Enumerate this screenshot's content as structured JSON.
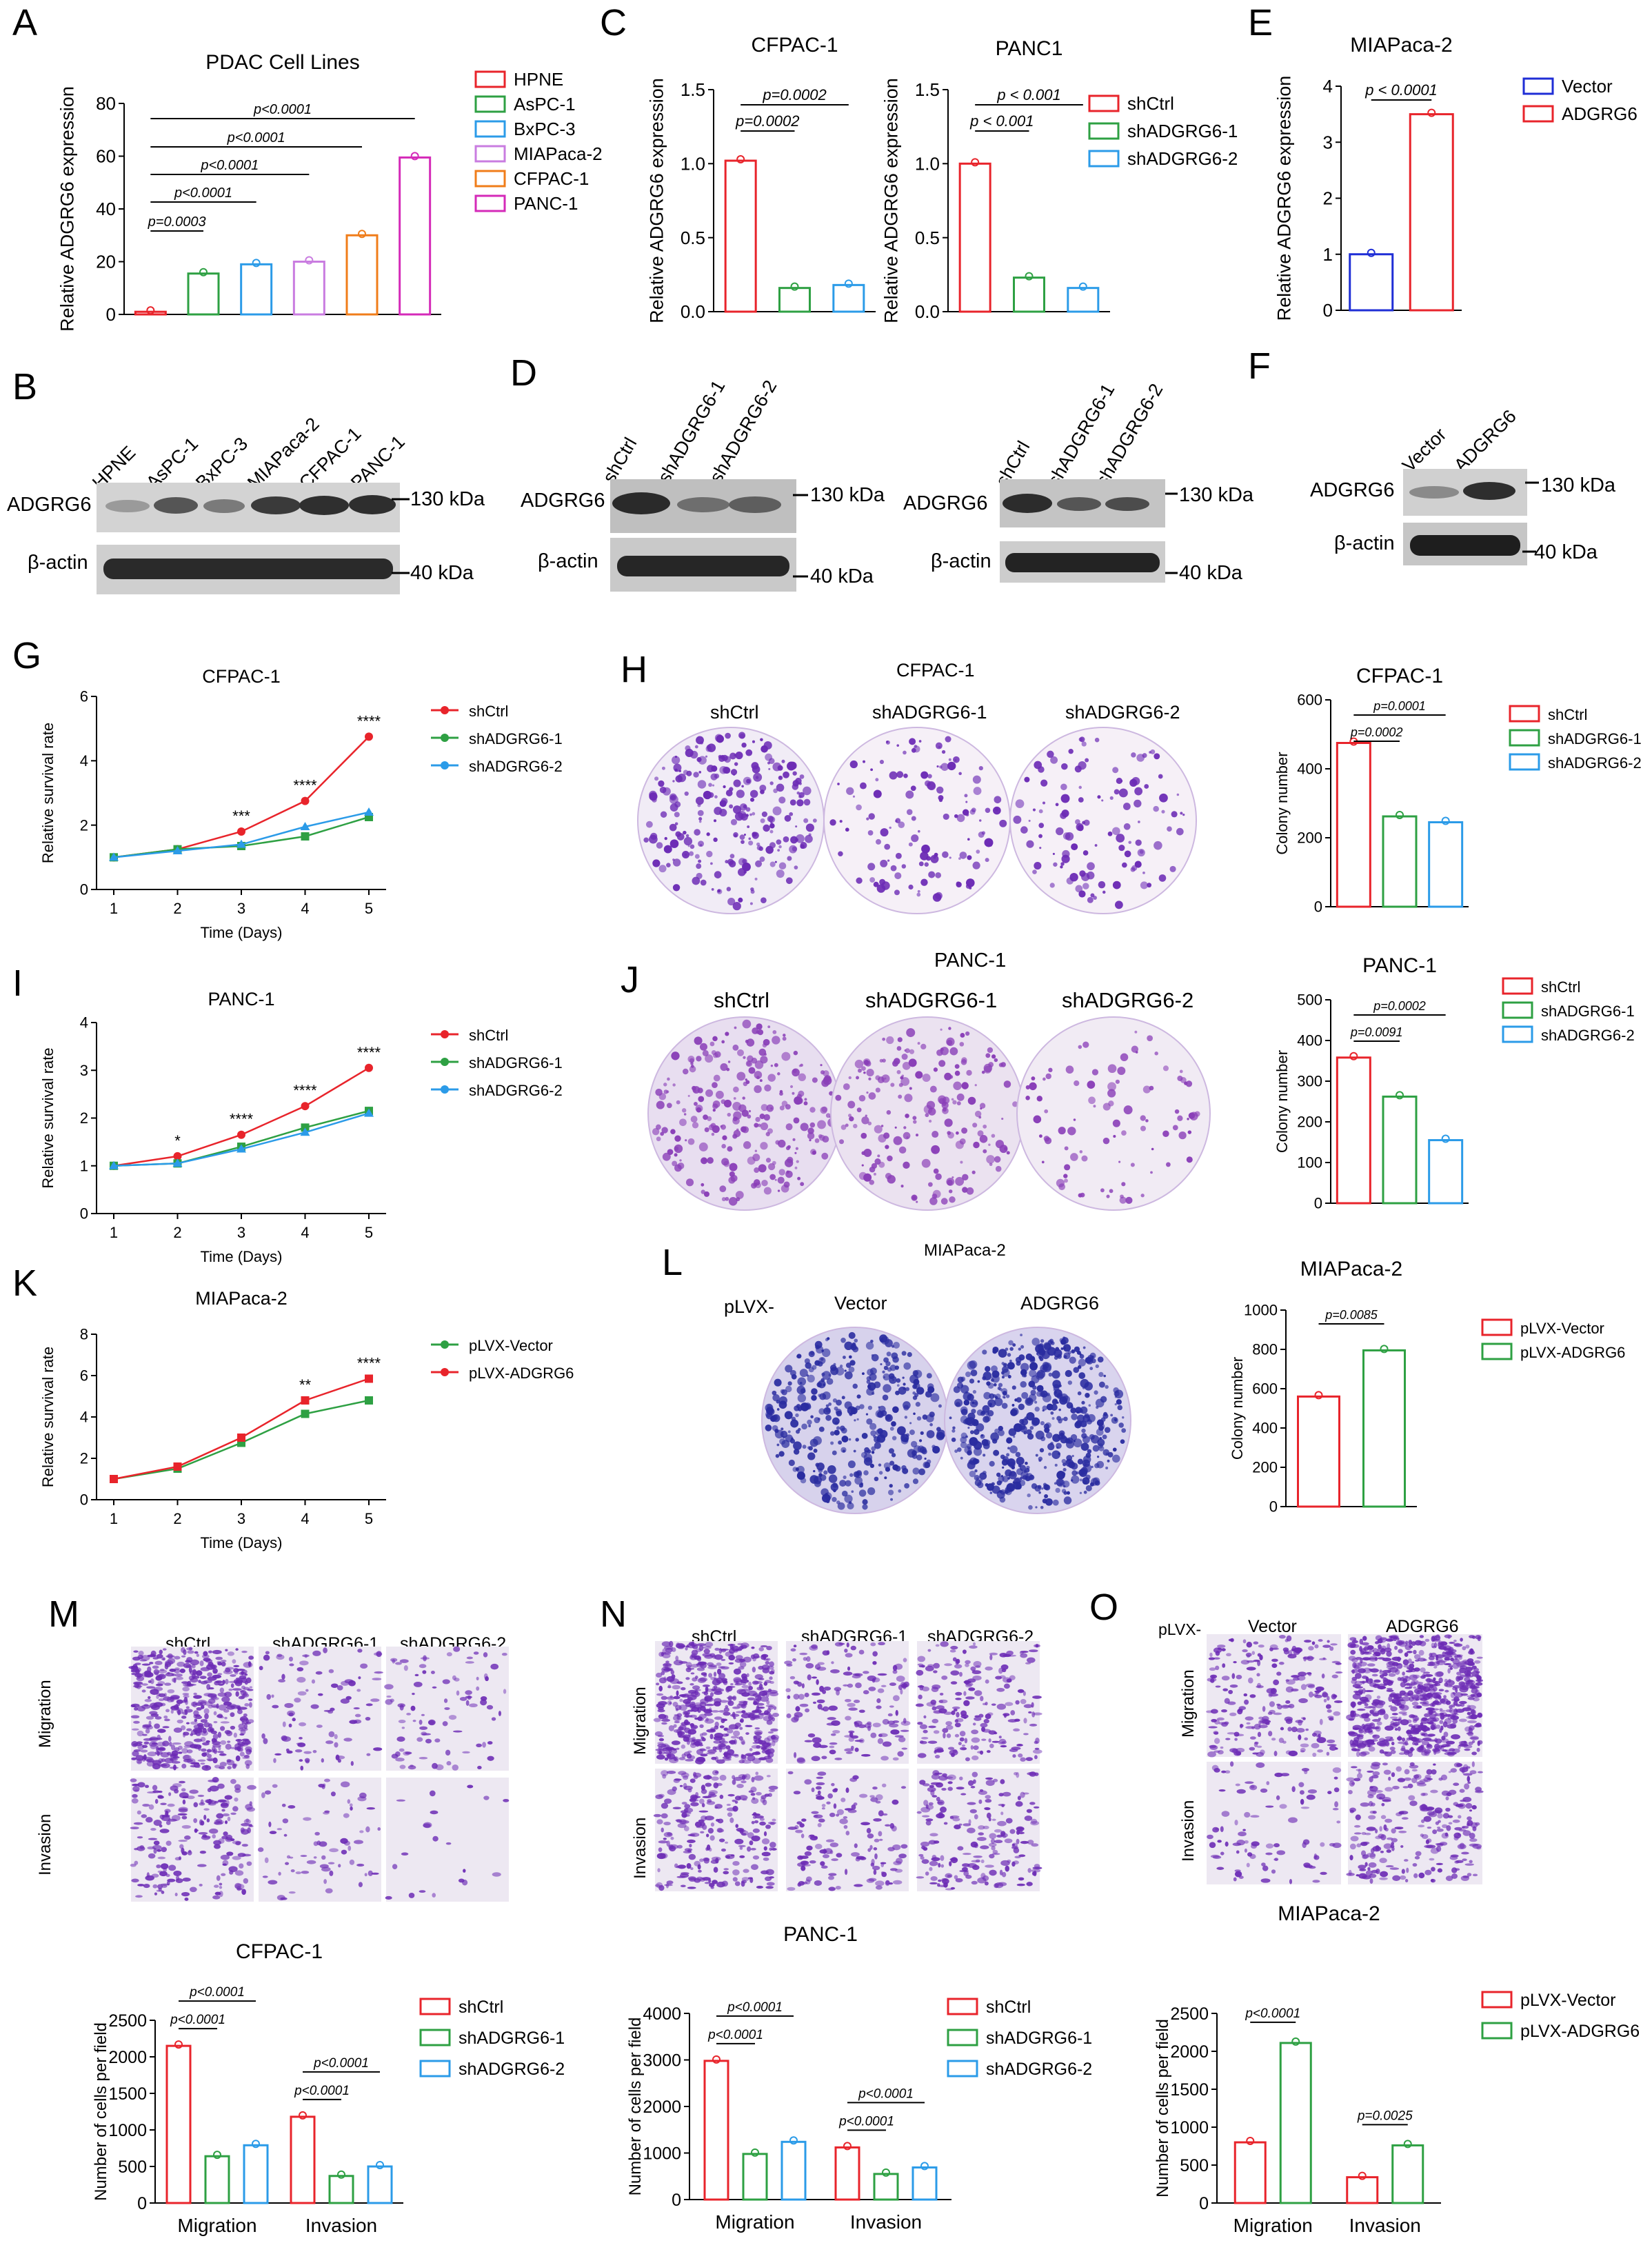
{
  "labels": {
    "A": "A",
    "B": "B",
    "C": "C",
    "D": "D",
    "E": "E",
    "F": "F",
    "G": "G",
    "H": "H",
    "I": "I",
    "J": "J",
    "K": "K",
    "L": "L",
    "M": "M",
    "N": "N",
    "O": "O"
  },
  "colors": {
    "red": "#e8242b",
    "green": "#2ea043",
    "blue": "#2b9be8",
    "violet": "#c97ce0",
    "orange": "#f07d1a",
    "magenta": "#d42ab8",
    "navy": "#1f2ed6",
    "stain": "#6c2bb5"
  },
  "blots": {
    "B": {
      "lanes": [
        "HPNE",
        "AsPC-1",
        "BxPC-3",
        "MIAPaca-2",
        "CFPAC-1",
        "PANC-1"
      ],
      "rows": [
        "ADGRG6",
        "β-actin"
      ],
      "markers": [
        "130 kDa",
        "40 kDa"
      ]
    },
    "D1": {
      "lanes": [
        "shCtrl",
        "shADGRG6-1",
        "shADGRG6-2"
      ],
      "rows": [
        "ADGRG6",
        "β-actin"
      ],
      "markers": [
        "130 kDa",
        "40 kDa"
      ]
    },
    "D2": {
      "lanes": [
        "shCtrl",
        "shADGRG6-1",
        "shADGRG6-2"
      ],
      "rows": [
        "ADGRG6",
        "β-actin"
      ],
      "markers": [
        "130 kDa",
        "40 kDa"
      ]
    },
    "F": {
      "lanes": [
        "Vector",
        "ADGRG6"
      ],
      "rows": [
        "ADGRG6",
        "β-actin"
      ],
      "markers": [
        "130 kDa",
        "40 kDa"
      ]
    }
  },
  "images": {
    "H": {
      "title": "CFPAC-1",
      "cols": [
        "shCtrl",
        "shADGRG6-1",
        "shADGRG6-2"
      ]
    },
    "J": {
      "title": "PANC-1",
      "cols": [
        "shCtrl",
        "shADGRG6-1",
        "shADGRG6-2"
      ]
    },
    "L": {
      "title": "MIAPaca-2",
      "prefix": "pLVX-",
      "cols": [
        "Vector",
        "ADGRG6"
      ]
    },
    "M": {
      "cols": [
        "shCtrl",
        "shADGRG6-1",
        "shADGRG6-2"
      ],
      "rows": [
        "Migration",
        "Invasion"
      ]
    },
    "N": {
      "cols": [
        "shCtrl",
        "shADGRG6-1",
        "shADGRG6-2"
      ],
      "rows": [
        "Migration",
        "Invasion"
      ]
    },
    "O": {
      "prefix": "pLVX-",
      "cols": [
        "Vector",
        "ADGRG6"
      ],
      "rows": [
        "Migration",
        "Invasion"
      ]
    }
  },
  "chart_data": [
    {
      "id": "A",
      "type": "bar",
      "title": "PDAC Cell Lines",
      "ylabel": "Relative ADGRG6 expression",
      "ylim": [
        0,
        80
      ],
      "yticks": [
        0,
        20,
        40,
        60,
        80
      ],
      "categories": [
        "HPNE",
        "AsPC-1",
        "BxPC-3",
        "MIAPaca-2",
        "CFPAC-1",
        "PANC-1"
      ],
      "values": [
        1,
        15.5,
        19,
        20,
        30,
        59.5
      ],
      "legend": [
        "HPNE",
        "AsPC-1",
        "BxPC-3",
        "MIAPaca-2",
        "CFPAC-1",
        "PANC-1"
      ],
      "annotations": [
        "p=0.0003",
        "p<0.0001",
        "p<0.0001",
        "p<0.0001",
        "p<0.0001"
      ]
    },
    {
      "id": "C1",
      "type": "bar",
      "title": "CFPAC-1",
      "ylabel": "Relative ADGRG6 expression",
      "ylim": [
        0,
        1.5
      ],
      "yticks": [
        "0.0",
        "0.5",
        "1.0",
        "1.5"
      ],
      "categories": [
        "shCtrl",
        "shADGRG6-1",
        "shADGRG6-2"
      ],
      "values": [
        1.02,
        0.16,
        0.18
      ],
      "annotations": [
        "p=0.0002",
        "p=0.0002"
      ]
    },
    {
      "id": "C2",
      "type": "bar",
      "title": "PANC1",
      "ylabel": "Relative ADGRG6 expression",
      "ylim": [
        0,
        1.5
      ],
      "yticks": [
        "0.0",
        "0.5",
        "1.0",
        "1.5"
      ],
      "categories": [
        "shCtrl",
        "shADGRG6-1",
        "shADGRG6-2"
      ],
      "values": [
        1.0,
        0.23,
        0.16
      ],
      "annotations": [
        "p < 0.001",
        "p < 0.001"
      ],
      "legend": [
        "shCtrl",
        "shADGRG6-1",
        "shADGRG6-2"
      ]
    },
    {
      "id": "E",
      "type": "bar",
      "title": "MIAPaca-2",
      "ylabel": "Relative ADGRG6 expression",
      "ylim": [
        0,
        4
      ],
      "yticks": [
        0,
        1,
        2,
        3,
        4
      ],
      "categories": [
        "Vector",
        "ADGRG6"
      ],
      "values": [
        1.0,
        3.5
      ],
      "annotations": [
        "p < 0.0001"
      ],
      "legend": [
        "Vector",
        "ADGRG6"
      ]
    },
    {
      "id": "G",
      "type": "line",
      "title": "CFPAC-1",
      "xlabel": "Time (Days)",
      "ylabel": "Relative survival rate",
      "ylim": [
        0,
        6
      ],
      "yticks": [
        0,
        2,
        4,
        6
      ],
      "x": [
        1,
        2,
        3,
        4,
        5
      ],
      "series": [
        {
          "name": "shCtrl",
          "values": [
            1,
            1.25,
            1.8,
            2.75,
            4.75
          ]
        },
        {
          "name": "shADGRG6-1",
          "values": [
            1,
            1.25,
            1.35,
            1.65,
            2.25
          ]
        },
        {
          "name": "shADGRG6-2",
          "values": [
            1,
            1.2,
            1.4,
            1.95,
            2.4
          ]
        }
      ],
      "annotations": [
        "***",
        "****",
        "****"
      ]
    },
    {
      "id": "H",
      "type": "bar",
      "title": "CFPAC-1",
      "ylabel": "Colony number",
      "ylim": [
        0,
        600
      ],
      "yticks": [
        0,
        200,
        400,
        600
      ],
      "categories": [
        "shCtrl",
        "shADGRG6-1",
        "shADGRG6-2"
      ],
      "values": [
        475,
        262,
        245
      ],
      "annotations": [
        "p=0.0002",
        "p=0.0001"
      ],
      "legend": [
        "shCtrl",
        "shADGRG6-1",
        "shADGRG6-2"
      ]
    },
    {
      "id": "I",
      "type": "line",
      "title": "PANC-1",
      "xlabel": "Time (Days)",
      "ylabel": "Relative survival rate",
      "ylim": [
        0,
        4
      ],
      "yticks": [
        0,
        1,
        2,
        3,
        4
      ],
      "x": [
        1,
        2,
        3,
        4,
        5
      ],
      "series": [
        {
          "name": "shCtrl",
          "values": [
            1,
            1.2,
            1.65,
            2.25,
            3.05
          ]
        },
        {
          "name": "shADGRG6-1",
          "values": [
            1,
            1.05,
            1.4,
            1.8,
            2.15
          ]
        },
        {
          "name": "shADGRG6-2",
          "values": [
            1,
            1.05,
            1.35,
            1.7,
            2.1
          ]
        }
      ],
      "annotations": [
        "*",
        "****",
        "****",
        "****"
      ]
    },
    {
      "id": "J",
      "type": "bar",
      "title": "PANC-1",
      "ylabel": "Colony number",
      "ylim": [
        0,
        500
      ],
      "yticks": [
        0,
        100,
        200,
        300,
        400,
        500
      ],
      "categories": [
        "shCtrl",
        "shADGRG6-1",
        "shADGRG6-2"
      ],
      "values": [
        358,
        262,
        155
      ],
      "annotations": [
        "p=0.0091",
        "p=0.0002"
      ],
      "legend": [
        "shCtrl",
        "shADGRG6-1",
        "shADGRG6-2"
      ]
    },
    {
      "id": "K",
      "type": "line",
      "title": "MIAPaca-2",
      "xlabel": "Time (Days)",
      "ylabel": "Relative survival rate",
      "ylim": [
        0,
        8
      ],
      "yticks": [
        0,
        2,
        4,
        6,
        8
      ],
      "x": [
        1,
        2,
        3,
        4,
        5
      ],
      "series": [
        {
          "name": "pLVX-Vector",
          "values": [
            1,
            1.5,
            2.75,
            4.15,
            4.8
          ]
        },
        {
          "name": "pLVX-ADGRG6",
          "values": [
            1,
            1.6,
            3.0,
            4.8,
            5.85
          ]
        }
      ],
      "annotations": [
        "**",
        "****"
      ]
    },
    {
      "id": "L",
      "type": "bar",
      "title": "MIAPaca-2",
      "ylabel": "Colony number",
      "ylim": [
        0,
        1000
      ],
      "yticks": [
        0,
        200,
        400,
        600,
        800,
        1000
      ],
      "categories": [
        "pLVX-Vector",
        "pLVX-ADGRG6"
      ],
      "values": [
        560,
        795
      ],
      "annotations": [
        "p=0.0085"
      ],
      "legend": [
        "pLVX-Vector",
        "pLVX-ADGRG6"
      ]
    },
    {
      "id": "M",
      "type": "bar",
      "title": "CFPAC-1",
      "ylabel": "Number of cells per field",
      "ylim": [
        0,
        2500
      ],
      "yticks": [
        0,
        500,
        1000,
        1500,
        2000,
        2500
      ],
      "categories": [
        "Migration",
        "Invasion"
      ],
      "series": [
        {
          "name": "shCtrl",
          "values": [
            2150,
            1180
          ]
        },
        {
          "name": "shADGRG6-1",
          "values": [
            640,
            370
          ]
        },
        {
          "name": "shADGRG6-2",
          "values": [
            790,
            500
          ]
        }
      ],
      "annotations": [
        "p<0.0001",
        "p<0.0001",
        "p<0.0001",
        "p<0.0001"
      ]
    },
    {
      "id": "N",
      "type": "bar",
      "title": "PANC-1",
      "ylabel": "Number of cells per field",
      "ylim": [
        0,
        4000
      ],
      "yticks": [
        0,
        1000,
        2000,
        3000,
        4000
      ],
      "categories": [
        "Migration",
        "Invasion"
      ],
      "series": [
        {
          "name": "shCtrl",
          "values": [
            2980,
            1120
          ]
        },
        {
          "name": "shADGRG6-1",
          "values": [
            980,
            550
          ]
        },
        {
          "name": "shADGRG6-2",
          "values": [
            1240,
            690
          ]
        }
      ],
      "annotations": [
        "p<0.0001",
        "p<0.0001",
        "p<0.0001",
        "p<0.0001"
      ]
    },
    {
      "id": "O",
      "type": "bar",
      "title": "MIAPaca-2",
      "ylabel": "Number of cells per field",
      "ylim": [
        0,
        2500
      ],
      "yticks": [
        0,
        500,
        1000,
        1500,
        2000,
        2500
      ],
      "categories": [
        "Migration",
        "Invasion"
      ],
      "series": [
        {
          "name": "pLVX-Vector",
          "values": [
            800,
            340
          ]
        },
        {
          "name": "pLVX-ADGRG6",
          "values": [
            2110,
            760
          ]
        }
      ],
      "annotations": [
        "p<0.0001",
        "p=0.0025"
      ]
    }
  ]
}
